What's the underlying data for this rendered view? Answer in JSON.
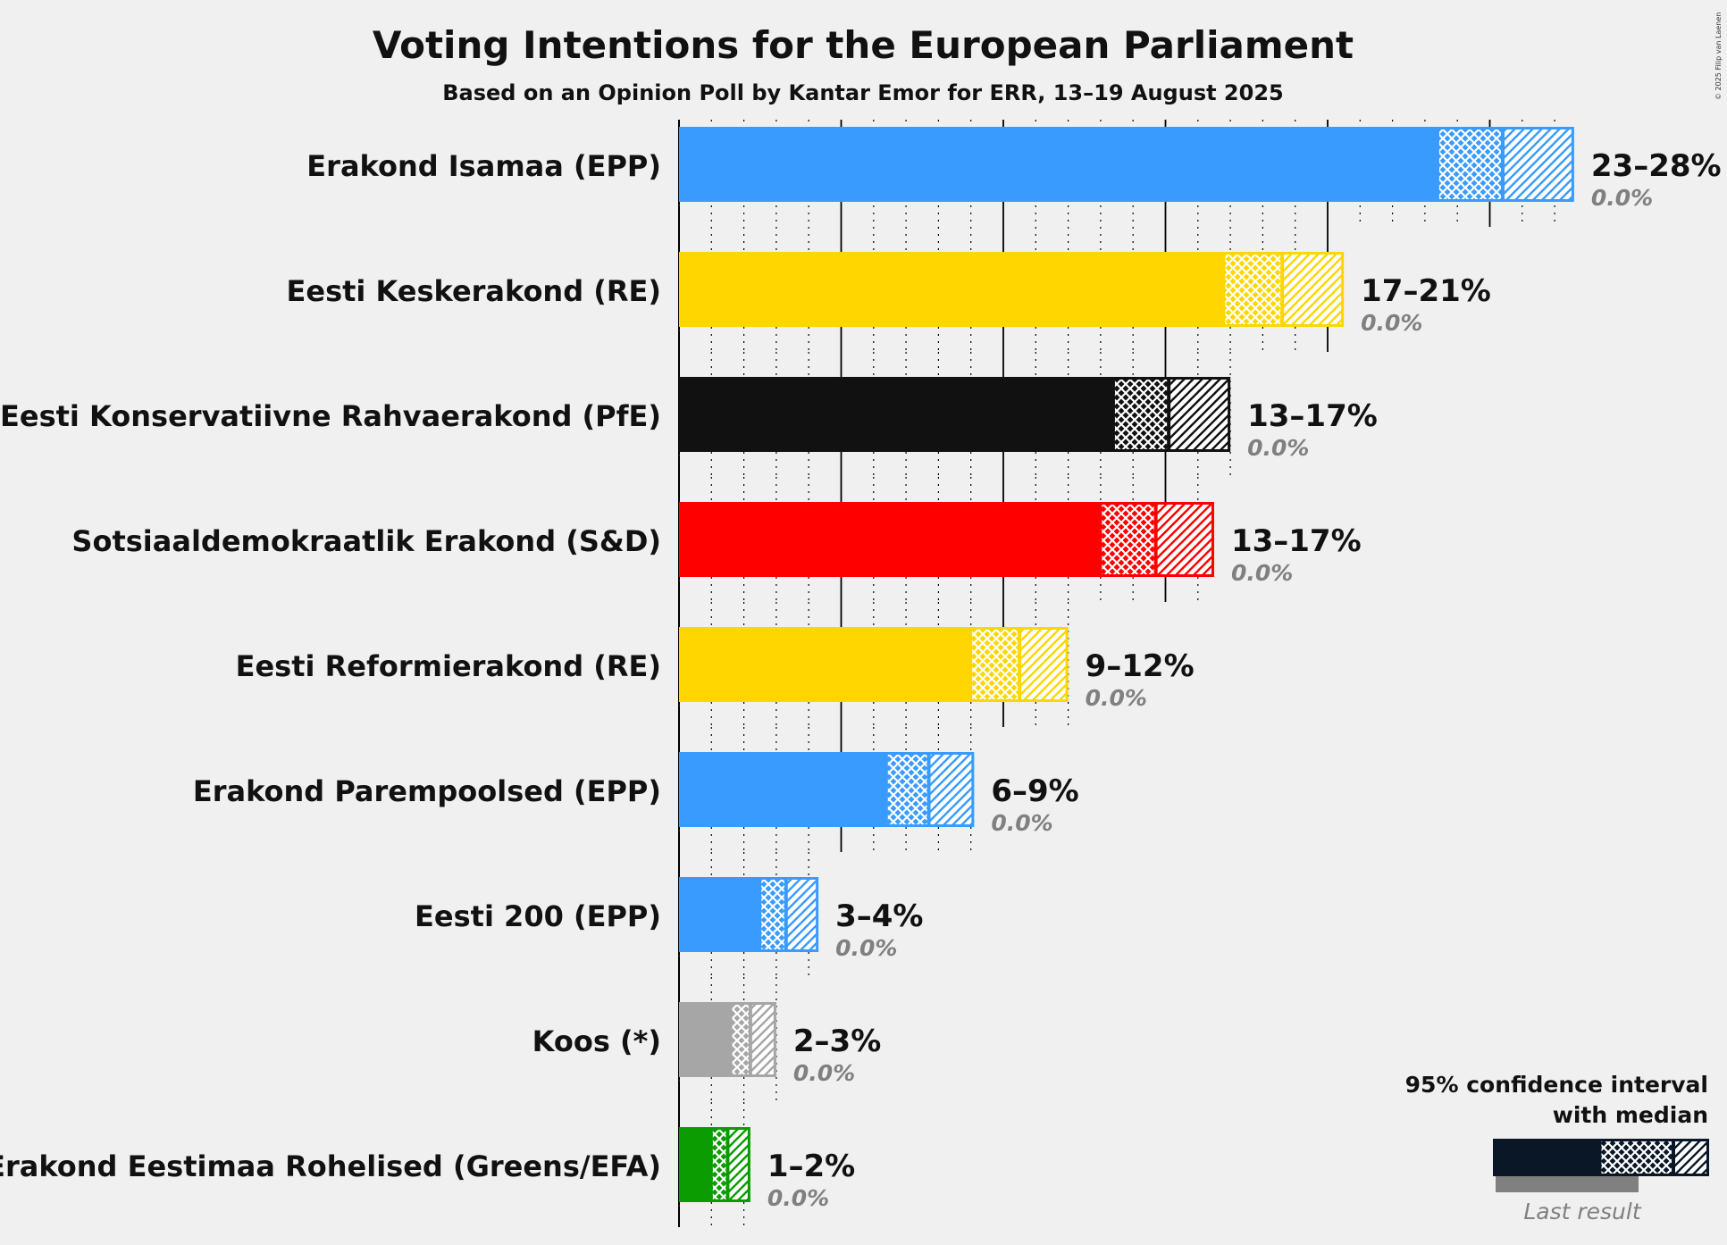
{
  "copyright": "© 2025 Filip van Laenen",
  "chart_data": {
    "type": "bar",
    "orientation": "horizontal",
    "title": "Voting Intentions for the European Parliament",
    "subtitle": "Based on an Opinion Poll by Kantar Emor for ERR, 13–19 August 2025",
    "xlabel": "",
    "ylabel": "",
    "unit": "%",
    "xlim": [
      0,
      28
    ],
    "grid": true,
    "series_description": "95% confidence interval with median, plus last result",
    "categories": [
      "Erakond Isamaa (EPP)",
      "Eesti Keskerakond (RE)",
      "Eesti Konservatiivne Rahvaerakond (PfE)",
      "Sotsiaaldemokraatlik Erakond (S&D)",
      "Eesti Reformierakond (RE)",
      "Erakond Parempoolsed (EPP)",
      "Eesti 200 (EPP)",
      "Koos (*)",
      "Erakond Eestimaa Rohelised (Greens/EFA)"
    ],
    "bars": [
      {
        "name": "Erakond Isamaa (EPP)",
        "color": "#3a9bff",
        "low": 23.4,
        "median": 25.4,
        "high": 27.6,
        "range_label": "23–28%",
        "last_result": 0.0,
        "last_label": "0.0%"
      },
      {
        "name": "Eesti Keskerakond (RE)",
        "color": "#ffd600",
        "low": 16.8,
        "median": 18.6,
        "high": 20.5,
        "range_label": "17–21%",
        "last_result": 0.0,
        "last_label": "0.0%"
      },
      {
        "name": "Eesti Konservatiivne Rahvaerakond (PfE)",
        "color": "#111111",
        "low": 13.4,
        "median": 15.1,
        "high": 17.0,
        "range_label": "13–17%",
        "last_result": 0.0,
        "last_label": "0.0%"
      },
      {
        "name": "Sotsiaaldemokraatlik Erakond (S&D)",
        "color": "#ff0000",
        "low": 13.0,
        "median": 14.7,
        "high": 16.5,
        "range_label": "13–17%",
        "last_result": 0.0,
        "last_label": "0.0%"
      },
      {
        "name": "Eesti Reformierakond (RE)",
        "color": "#ffd600",
        "low": 9.0,
        "median": 10.5,
        "high": 12.0,
        "range_label": "9–12%",
        "last_result": 0.0,
        "last_label": "0.0%"
      },
      {
        "name": "Erakond Parempoolsed (EPP)",
        "color": "#3a9bff",
        "low": 6.4,
        "median": 7.7,
        "high": 9.1,
        "range_label": "6–9%",
        "last_result": 0.0,
        "last_label": "0.0%"
      },
      {
        "name": "Eesti 200 (EPP)",
        "color": "#3a9bff",
        "low": 2.5,
        "median": 3.3,
        "high": 4.3,
        "range_label": "3–4%",
        "last_result": 0.0,
        "last_label": "0.0%"
      },
      {
        "name": "Koos (*)",
        "color": "#a6a6a6",
        "low": 1.6,
        "median": 2.2,
        "high": 3.0,
        "range_label": "2–3%",
        "last_result": 0.0,
        "last_label": "0.0%"
      },
      {
        "name": "Erakond Eestimaa Rohelised (Greens/EFA)",
        "color": "#0a9c00",
        "low": 1.0,
        "median": 1.5,
        "high": 2.2,
        "range_label": "1–2%",
        "last_result": 0.0,
        "last_label": "0.0%"
      }
    ],
    "legend": {
      "position": "bottom-right",
      "line1": "95% confidence interval",
      "line2": "with median",
      "last": "Last result",
      "color": "#0a1726"
    }
  }
}
